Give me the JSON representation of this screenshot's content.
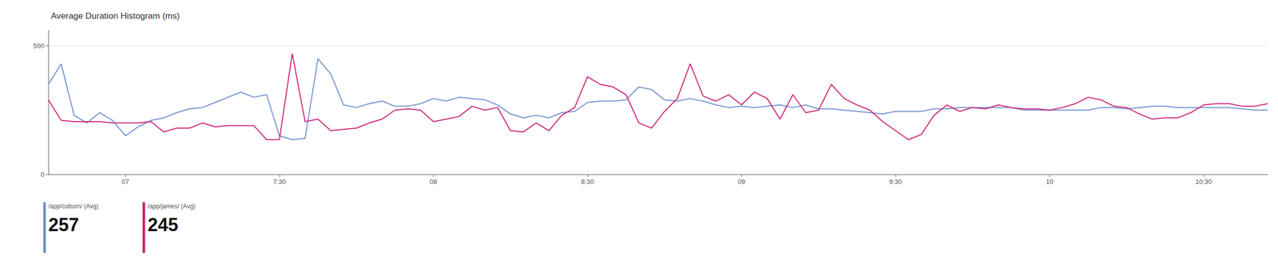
{
  "chart_data": {
    "type": "line",
    "title": "Average Duration Histogram (ms)",
    "categories": [
      null,
      null,
      null,
      null,
      null,
      null,
      "07",
      null,
      null,
      null,
      null,
      null,
      null,
      null,
      null,
      null,
      null,
      null,
      "7:30",
      null,
      null,
      null,
      null,
      null,
      null,
      null,
      null,
      null,
      null,
      null,
      "08",
      null,
      null,
      null,
      null,
      null,
      null,
      null,
      null,
      null,
      null,
      null,
      "8:30",
      null,
      null,
      null,
      null,
      null,
      null,
      null,
      null,
      null,
      null,
      null,
      "09",
      null,
      null,
      null,
      null,
      null,
      null,
      null,
      null,
      null,
      null,
      null,
      "9:30",
      null,
      null,
      null,
      null,
      null,
      null,
      null,
      null,
      null,
      null,
      null,
      "10",
      null,
      null,
      null,
      null,
      null,
      null,
      null,
      null,
      null,
      null,
      null,
      "10:30",
      null,
      null,
      null,
      null,
      null
    ],
    "series": [
      {
        "name": "/app/coburn/ (Avg)",
        "color": "#7090d0",
        "average": 257,
        "values": [
          350,
          430,
          230,
          200,
          240,
          210,
          150,
          185,
          210,
          220,
          240,
          255,
          260,
          280,
          300,
          320,
          300,
          310,
          150,
          135,
          140,
          450,
          390,
          270,
          260,
          275,
          285,
          265,
          265,
          275,
          295,
          285,
          300,
          295,
          290,
          270,
          235,
          220,
          230,
          220,
          240,
          245,
          280,
          285,
          285,
          290,
          340,
          330,
          290,
          285,
          295,
          285,
          270,
          260,
          265,
          260,
          265,
          270,
          260,
          270,
          255,
          255,
          250,
          245,
          240,
          235,
          245,
          245,
          245,
          255,
          255,
          260,
          260,
          260,
          260,
          260,
          250,
          250,
          250,
          250,
          250,
          250,
          260,
          260,
          255,
          260,
          265,
          265,
          260,
          260,
          260,
          260,
          260,
          255,
          250,
          250
        ]
      },
      {
        "name": "/app/james/ (Avg)",
        "color": "#cc2277",
        "average": 245,
        "values": [
          290,
          210,
          205,
          205,
          205,
          200,
          200,
          200,
          205,
          165,
          180,
          180,
          200,
          185,
          190,
          190,
          190,
          135,
          135,
          470,
          205,
          215,
          170,
          175,
          180,
          200,
          215,
          250,
          255,
          250,
          205,
          215,
          225,
          265,
          250,
          260,
          170,
          165,
          200,
          170,
          230,
          260,
          380,
          350,
          340,
          310,
          200,
          180,
          245,
          295,
          430,
          305,
          285,
          310,
          270,
          320,
          295,
          215,
          310,
          240,
          250,
          350,
          295,
          270,
          250,
          205,
          170,
          135,
          155,
          230,
          270,
          245,
          260,
          255,
          270,
          260,
          255,
          255,
          250,
          260,
          275,
          300,
          290,
          265,
          260,
          235,
          215,
          220,
          220,
          240,
          270,
          275,
          275,
          265,
          265,
          275
        ]
      }
    ],
    "ylim": [
      0,
      560
    ],
    "yticks": [
      0,
      500
    ],
    "grid": true,
    "legend": "bottom"
  }
}
